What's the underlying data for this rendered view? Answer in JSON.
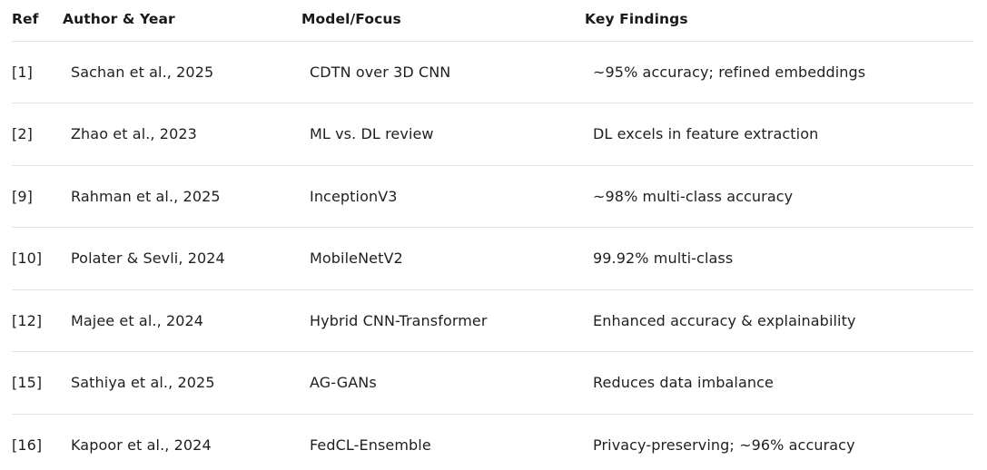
{
  "headers": {
    "ref": "Ref",
    "author": "Author & Year",
    "model": "Model/Focus",
    "findings": "Key Findings"
  },
  "rows": [
    {
      "ref": "[1]",
      "author": "Sachan et al., 2025",
      "model": "CDTN over 3D CNN",
      "findings": "~95% accuracy; refined embeddings"
    },
    {
      "ref": "[2]",
      "author": "Zhao et al., 2023",
      "model": "ML vs. DL review",
      "findings": "DL excels in feature extraction"
    },
    {
      "ref": "[9]",
      "author": "Rahman et al., 2025",
      "model": "InceptionV3",
      "findings": "~98% multi-class accuracy"
    },
    {
      "ref": "[10]",
      "author": "Polater & Sevli, 2024",
      "model": "MobileNetV2",
      "findings": "99.92% multi-class"
    },
    {
      "ref": "[12]",
      "author": "Majee et al., 2024",
      "model": "Hybrid CNN-Transformer",
      "findings": "Enhanced accuracy & explainability"
    },
    {
      "ref": "[15]",
      "author": "Sathiya et al., 2025",
      "model": "AG-GANs",
      "findings": "Reduces data imbalance"
    },
    {
      "ref": "[16]",
      "author": "Kapoor et al., 2024",
      "model": "FedCL-Ensemble",
      "findings": "Privacy-preserving; ~96% accuracy"
    }
  ]
}
